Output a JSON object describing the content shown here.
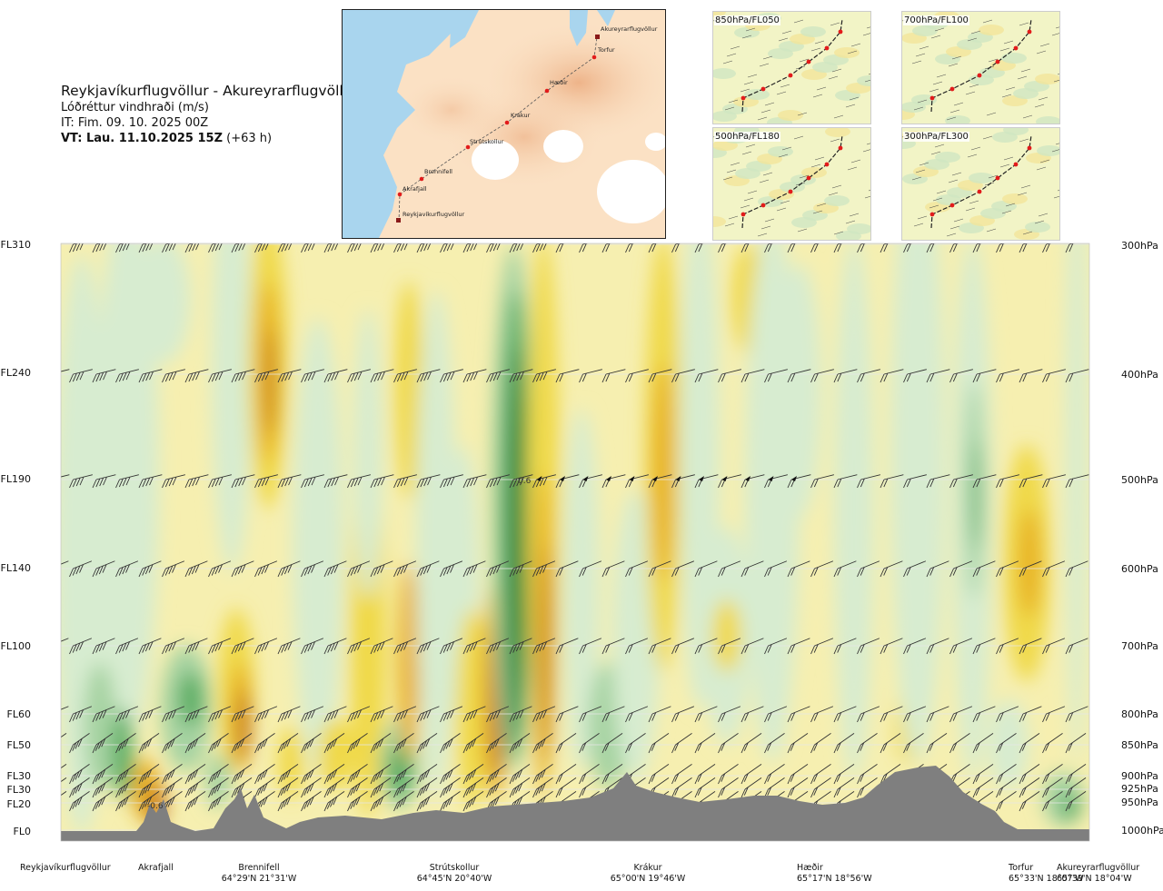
{
  "header": {
    "route": "Reykjavíkurflugvöllur - Akureyrarflugvöllur",
    "quantity": "Lóðréttur vindhraði (m/s)",
    "issue_time": "IT: Fim. 09. 10. 2025 00Z",
    "valid_label": "VT: Lau. 11.10.2025 15Z",
    "valid_offset": "(+63 h)"
  },
  "map": {
    "stations": [
      "Akureyrarflugvöllur",
      "Torfur",
      "Hæðir",
      "Krákur",
      "Strútskollur",
      "Brennifell",
      "Akrafjall",
      "Reykjavíkurflugvöllur"
    ]
  },
  "thumbnails": [
    {
      "label": "850hPa/FL050"
    },
    {
      "label": "700hPa/FL100"
    },
    {
      "label": "500hPa/FL180"
    },
    {
      "label": "300hPa/FL300"
    }
  ],
  "colors": {
    "ground": "#7f7f7f",
    "up_light": "#f6efb0",
    "up_mid": "#f0d94a",
    "up_strong": "#e8b020",
    "up_max": "#c8781e",
    "down_light": "#d7ecd0",
    "down_mid": "#a6d3a2",
    "down_strong": "#5cae63",
    "down_max": "#1a7d2e"
  },
  "chart_data": {
    "type": "heatmap",
    "title": "Lóðréttur vindhraði (m/s)",
    "left_axis_labels": [
      "FL310",
      "FL240",
      "FL190",
      "FL140",
      "FL100",
      "FL60",
      "FL50",
      "FL30",
      "FL30",
      "FL20",
      "FL0"
    ],
    "right_axis_labels": [
      "300hPa",
      "400hPa",
      "500hPa",
      "600hPa",
      "700hPa",
      "800hPa",
      "850hPa",
      "900hPa",
      "925hPa",
      "950hPa",
      "1000hPa"
    ],
    "pressure_levels_hPa": [
      300,
      400,
      500,
      600,
      700,
      800,
      850,
      900,
      925,
      950,
      1000
    ],
    "contour_labels": [
      "0.6",
      "-0.6"
    ],
    "x_stations": [
      {
        "name": "Reykjavíkurflugvöllur",
        "coord": ""
      },
      {
        "name": "Akrafjall",
        "coord": ""
      },
      {
        "name": "Brennifell",
        "coord": "64°29'N 21°31'W"
      },
      {
        "name": "Strútskollur",
        "coord": "64°45'N 20°40'W"
      },
      {
        "name": "Krákur",
        "coord": "65°00'N 19°46'W"
      },
      {
        "name": "Hæðir",
        "coord": "65°17'N 18°56'W"
      },
      {
        "name": "Torfur",
        "coord": "65°33'N 18°07'W"
      },
      {
        "name": "Akureyrarflugvöllur",
        "coord": "65°39'N 18°04'W"
      }
    ],
    "grid": true
  }
}
